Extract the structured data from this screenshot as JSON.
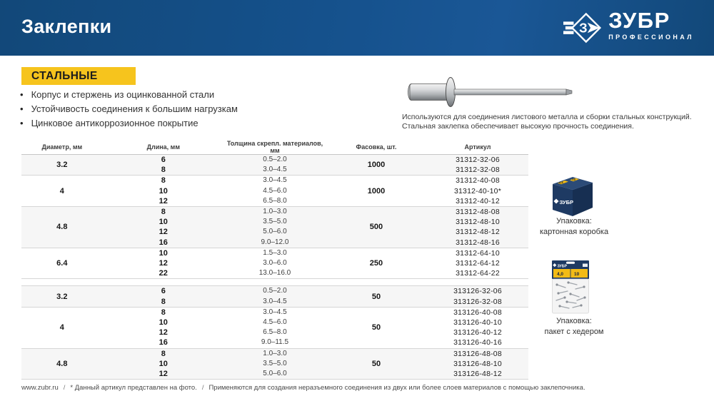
{
  "colors": {
    "header_blue": "#15518C",
    "brand_yellow": "#F6C41D"
  },
  "header": {
    "title": "Заклепки",
    "logo_text": "ЗУБР",
    "logo_letter": "З",
    "logo_subtext": "ПРОФЕССИОНАЛ"
  },
  "category": {
    "label": "СТАЛЬНЫЕ"
  },
  "features": [
    "Корпус и стержень из оцинкованной стали",
    "Устойчивость соединения к большим нагрузкам",
    "Цинковое антикоррозионное покрытие"
  ],
  "description": [
    "Используются для соединения листового металла и сборки стальных конструкций.",
    "Стальная заклепка обеспечивает высокую прочность соединения."
  ],
  "table": {
    "headers": [
      "Диаметр, мм",
      "Длина, мм",
      "Толщина скрепл. материалов, мм",
      "Фасовка, шт.",
      "Артикул"
    ],
    "sections": [
      {
        "groups": [
          {
            "diameter": "3.2",
            "packing": "1000",
            "rows": [
              [
                "6",
                "0.5–2.0",
                "31312-32-06"
              ],
              [
                "8",
                "3.0–4.5",
                "31312-32-08"
              ]
            ]
          },
          {
            "diameter": "4",
            "packing": "1000",
            "rows": [
              [
                "8",
                "3.0–4.5",
                "31312-40-08"
              ],
              [
                "10",
                "4.5–6.0",
                "31312-40-10*"
              ],
              [
                "12",
                "6.5–8.0",
                "31312-40-12"
              ]
            ]
          },
          {
            "diameter": "4.8",
            "packing": "500",
            "rows": [
              [
                "8",
                "1.0–3.0",
                "31312-48-08"
              ],
              [
                "10",
                "3.5–5.0",
                "31312-48-10"
              ],
              [
                "12",
                "5.0–6.0",
                "31312-48-12"
              ],
              [
                "16",
                "9.0–12.0",
                "31312-48-16"
              ]
            ]
          },
          {
            "diameter": "6.4",
            "packing": "250",
            "rows": [
              [
                "10",
                "1.5–3.0",
                "31312-64-10"
              ],
              [
                "12",
                "3.0–6.0",
                "31312-64-12"
              ],
              [
                "22",
                "13.0–16.0",
                "31312-64-22"
              ]
            ]
          }
        ]
      },
      {
        "groups": [
          {
            "diameter": "3.2",
            "packing": "50",
            "rows": [
              [
                "6",
                "0.5–2.0",
                "313126-32-06"
              ],
              [
                "8",
                "3.0–4.5",
                "313126-32-08"
              ]
            ]
          },
          {
            "diameter": "4",
            "packing": "50",
            "rows": [
              [
                "8",
                "3.0–4.5",
                "313126-40-08"
              ],
              [
                "10",
                "4.5–6.0",
                "313126-40-10"
              ],
              [
                "12",
                "6.5–8.0",
                "313126-40-12"
              ],
              [
                "16",
                "9.0–11.5",
                "313126-40-16"
              ]
            ]
          },
          {
            "diameter": "4.8",
            "packing": "50",
            "rows": [
              [
                "8",
                "1.0–3.0",
                "313126-48-08"
              ],
              [
                "10",
                "3.5–5.0",
                "313126-48-10"
              ],
              [
                "12",
                "5.0–6.0",
                "313126-48-12"
              ]
            ]
          }
        ]
      }
    ]
  },
  "packaging": [
    {
      "label_diameter": "4,8",
      "label_length": "10",
      "caption": [
        "Упаковка:",
        "картонная коробка"
      ]
    },
    {
      "label_diameter": "4,0",
      "label_length": "10",
      "caption": [
        "Упаковка:",
        "пакет с хедером"
      ]
    }
  ],
  "footer": {
    "url": "www.zubr.ru",
    "separator": "/",
    "photo_note": "* Данный артикул представлен на фото.",
    "usage_note": "Применяются для создания неразъемного соединения из двух или более слоев материалов с помощью заклепочника."
  }
}
